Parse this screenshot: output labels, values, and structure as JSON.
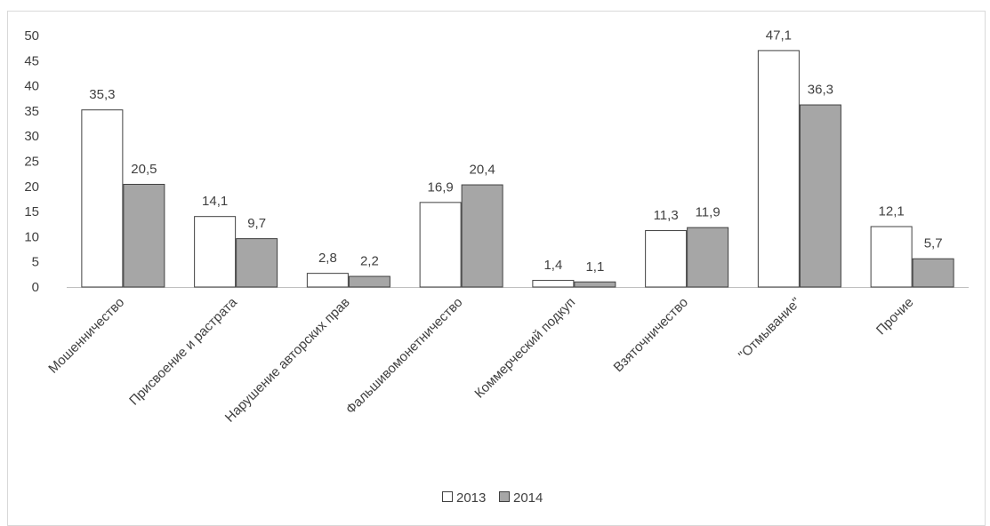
{
  "chart_data": {
    "type": "bar",
    "categories": [
      "Мошенничество",
      "Присвоение и растрата",
      "Нарушение авторских прав",
      "Фальшивомонетничество",
      "Коммерческий подкуп",
      "Взяточничество",
      "\"Отмывание\"",
      "Прочие"
    ],
    "series": [
      {
        "name": "2013",
        "values": [
          35.3,
          14.1,
          2.8,
          16.9,
          1.4,
          11.3,
          47.1,
          12.1
        ],
        "labels": [
          "35,3",
          "14,1",
          "2,8",
          "16,9",
          "1,4",
          "11,3",
          "47,1",
          "12,1"
        ],
        "color": "#ffffff"
      },
      {
        "name": "2014",
        "values": [
          20.5,
          9.7,
          2.2,
          20.4,
          1.1,
          11.9,
          36.3,
          5.7
        ],
        "labels": [
          "20,5",
          "9,7",
          "2,2",
          "20,4",
          "1,1",
          "11,9",
          "36,3",
          "5,7"
        ],
        "color": "#a6a6a6"
      }
    ],
    "yticks": [
      "0",
      "5",
      "10",
      "15",
      "20",
      "25",
      "30",
      "35",
      "40",
      "45",
      "50"
    ],
    "ylim": [
      0,
      50
    ],
    "grid": false,
    "legend_position": "bottom",
    "title": "",
    "xlabel": "",
    "ylabel": ""
  }
}
